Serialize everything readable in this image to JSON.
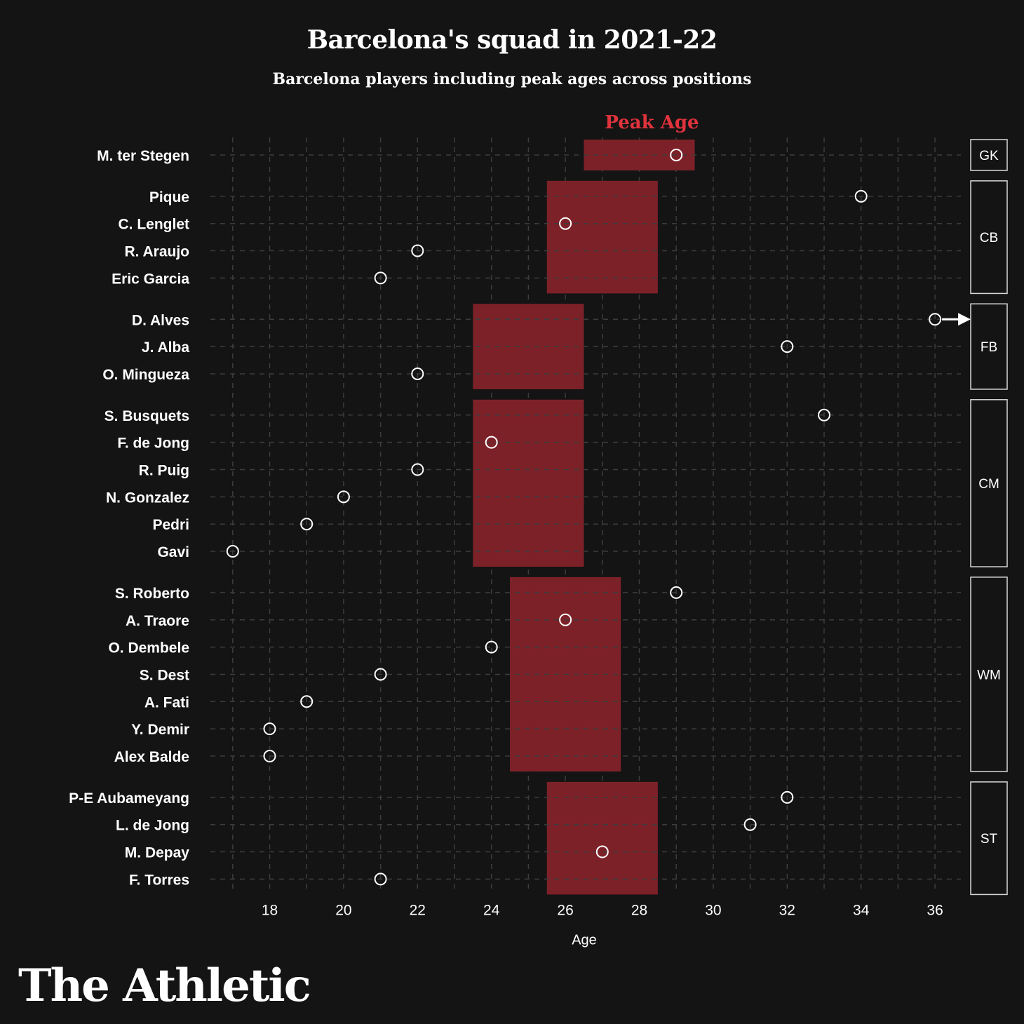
{
  "header": {
    "title": "Barcelona's squad in 2021-22",
    "subtitle": "Barcelona players including peak ages across positions"
  },
  "brand": {
    "logo_text": "The Athletic"
  },
  "colors": {
    "background": "#141414",
    "peak_band": "#7d2128",
    "peak_label": "#e0333d",
    "grid": "#3c3c3c",
    "text": "#ffffff"
  },
  "chart_data": {
    "type": "scatter",
    "xlabel": "Age",
    "ylabel": "",
    "xlim": [
      16.2,
      37
    ],
    "xticks": [
      18,
      20,
      22,
      24,
      26,
      28,
      30,
      32,
      34,
      36
    ],
    "peak_label": "Peak Age",
    "arrow_note": "D. Alves age exceeds axis range (arrow)",
    "groups": [
      {
        "position": "GK",
        "peak": [
          26.5,
          29.5
        ],
        "players": [
          {
            "name": "M. ter Stegen",
            "age": 29
          }
        ]
      },
      {
        "position": "CB",
        "peak": [
          25.5,
          28.5
        ],
        "players": [
          {
            "name": "Pique",
            "age": 34
          },
          {
            "name": "C. Lenglet",
            "age": 26
          },
          {
            "name": "R. Araujo",
            "age": 22
          },
          {
            "name": "Eric Garcia",
            "age": 21
          }
        ]
      },
      {
        "position": "FB",
        "peak": [
          23.5,
          26.5
        ],
        "players": [
          {
            "name": "D. Alves",
            "age": 38,
            "clipped": true
          },
          {
            "name": "J. Alba",
            "age": 32
          },
          {
            "name": "O. Mingueza",
            "age": 22
          }
        ]
      },
      {
        "position": "CM",
        "peak": [
          23.5,
          26.5
        ],
        "players": [
          {
            "name": "S. Busquets",
            "age": 33
          },
          {
            "name": "F. de Jong",
            "age": 24
          },
          {
            "name": "R. Puig",
            "age": 22
          },
          {
            "name": "N. Gonzalez",
            "age": 20
          },
          {
            "name": "Pedri",
            "age": 19
          },
          {
            "name": "Gavi",
            "age": 17
          }
        ]
      },
      {
        "position": "WM",
        "peak": [
          24.5,
          27.5
        ],
        "players": [
          {
            "name": "S. Roberto",
            "age": 29
          },
          {
            "name": "A. Traore",
            "age": 26
          },
          {
            "name": "O. Dembele",
            "age": 24
          },
          {
            "name": "S. Dest",
            "age": 21
          },
          {
            "name": "A. Fati",
            "age": 19
          },
          {
            "name": "Y. Demir",
            "age": 18
          },
          {
            "name": "Alex Balde",
            "age": 18
          }
        ]
      },
      {
        "position": "ST",
        "peak": [
          25.5,
          28.5
        ],
        "players": [
          {
            "name": "P-E Aubameyang",
            "age": 32
          },
          {
            "name": "L. de Jong",
            "age": 31
          },
          {
            "name": "M. Depay",
            "age": 27
          },
          {
            "name": "F. Torres",
            "age": 21
          }
        ]
      }
    ]
  }
}
